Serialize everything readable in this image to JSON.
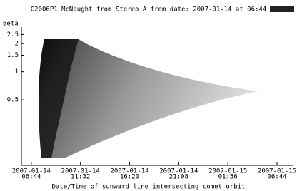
{
  "chart_data": {
    "type": "image",
    "title": "C2006P1 McNaught from Stereo A from date: 2007-01-14 at 06:44",
    "ylabel": "Beta",
    "xlabel": "Date/Time of sunward line intersecting comet orbit",
    "yscale": "log",
    "ylim": [
      0.1,
      3.0
    ],
    "yticks": [
      2.5,
      2.0,
      1.5,
      1.0,
      0.5
    ],
    "xlim": [
      "2007-01-14T05:46",
      "2007-01-15T08:16"
    ],
    "xticks": [
      {
        "value": "2007-01-14T06:44",
        "label": [
          "2007-01-14",
          "06:44"
        ]
      },
      {
        "value": "2007-01-14T11:32",
        "label": [
          "2007-01-14",
          "11:32"
        ]
      },
      {
        "value": "2007-01-14T16:20",
        "label": [
          "2007-01-14",
          "16:20"
        ]
      },
      {
        "value": "2007-01-14T21:08",
        "label": [
          "2007-01-14",
          "21:08"
        ]
      },
      {
        "value": "2007-01-15T01:56",
        "label": [
          "2007-01-15",
          "01:56"
        ]
      },
      {
        "value": "2007-01-15T06:44",
        "label": [
          "2007-01-15",
          "06:44"
        ]
      }
    ]
  }
}
